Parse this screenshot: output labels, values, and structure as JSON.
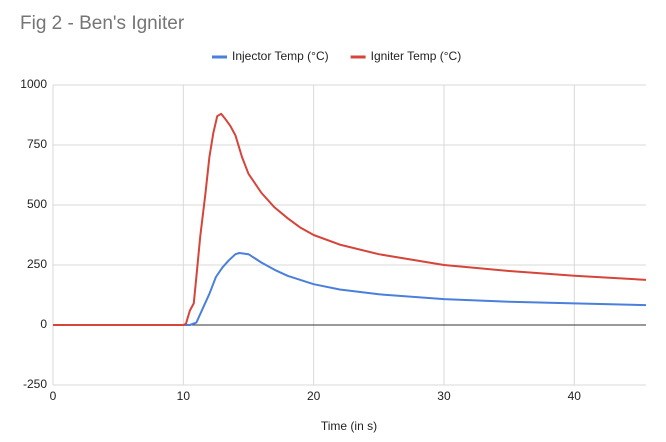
{
  "chart_data": {
    "type": "line",
    "title": "Fig 2 - Ben's Igniter",
    "x_label": "Time (in s)",
    "xlim": [
      0,
      45.5
    ],
    "ylim": [
      -250,
      1000
    ],
    "xticks": [
      0,
      10,
      20,
      30,
      40
    ],
    "yticks": [
      -250,
      0,
      250,
      500,
      750,
      1000
    ],
    "grid": true,
    "legend": "top",
    "series": [
      {
        "name": "Injector Temp (°C)",
        "color": "#4a7fdc",
        "x": [
          0,
          5,
          10,
          10.5,
          11,
          11.5,
          12,
          12.5,
          13,
          13.5,
          14,
          14.3,
          15,
          16,
          17,
          18,
          20,
          22,
          25,
          30,
          35,
          40,
          45.5
        ],
        "values": [
          0,
          0,
          0,
          0,
          10,
          70,
          130,
          200,
          240,
          270,
          295,
          300,
          295,
          260,
          230,
          205,
          170,
          148,
          128,
          108,
          97,
          90,
          83
        ]
      },
      {
        "name": "Igniter Temp (°C)",
        "color": "#d6443a",
        "x": [
          0,
          5,
          10,
          10.2,
          10.5,
          10.8,
          11,
          11.3,
          11.7,
          12,
          12.3,
          12.6,
          12.9,
          13.2,
          13.6,
          14,
          14.5,
          15,
          16,
          17,
          18,
          19,
          20,
          22,
          25,
          30,
          35,
          40,
          45.5
        ],
        "values": [
          0,
          0,
          0,
          5,
          60,
          90,
          200,
          370,
          550,
          700,
          800,
          870,
          880,
          860,
          830,
          790,
          700,
          630,
          550,
          490,
          445,
          405,
          375,
          335,
          295,
          250,
          225,
          205,
          188
        ]
      }
    ]
  }
}
